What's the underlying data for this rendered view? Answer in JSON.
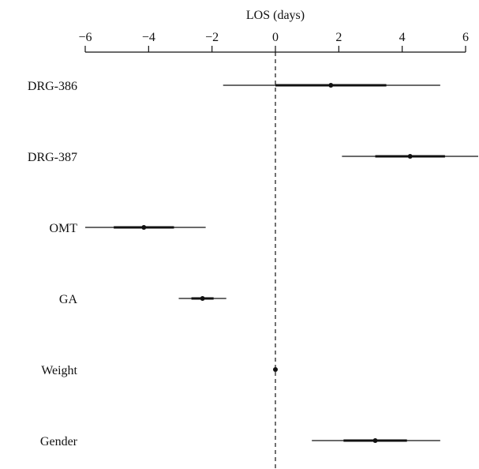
{
  "chart_data": {
    "type": "forest",
    "xlabel": "LOS (days)",
    "xlim": [
      -6,
      6
    ],
    "xticks": [
      -6,
      -4,
      -2,
      0,
      2,
      4,
      6
    ],
    "xtick_labels": [
      "−6",
      "−4",
      "−2",
      "0",
      "2",
      "4",
      "6"
    ],
    "reference_line": 0,
    "rows": [
      {
        "label": "DRG-386",
        "estimate": 1.75,
        "inner": [
          0.0,
          3.5
        ],
        "outer": [
          -1.65,
          5.2
        ]
      },
      {
        "label": "DRG-387",
        "estimate": 4.25,
        "inner": [
          3.15,
          5.35
        ],
        "outer": [
          2.1,
          6.5
        ]
      },
      {
        "label": "OMT",
        "estimate": -4.15,
        "inner": [
          -5.1,
          -3.2
        ],
        "outer": [
          -6.0,
          -2.2
        ]
      },
      {
        "label": "GA",
        "estimate": -2.3,
        "inner": [
          -2.65,
          -1.95
        ],
        "outer": [
          -3.05,
          -1.55
        ]
      },
      {
        "label": "Weight",
        "estimate": 0.0,
        "inner": [
          0.0,
          0.0
        ],
        "outer": [
          0.0,
          0.0
        ]
      },
      {
        "label": "Gender",
        "estimate": 3.15,
        "inner": [
          2.15,
          4.15
        ],
        "outer": [
          1.15,
          5.2
        ]
      }
    ]
  }
}
